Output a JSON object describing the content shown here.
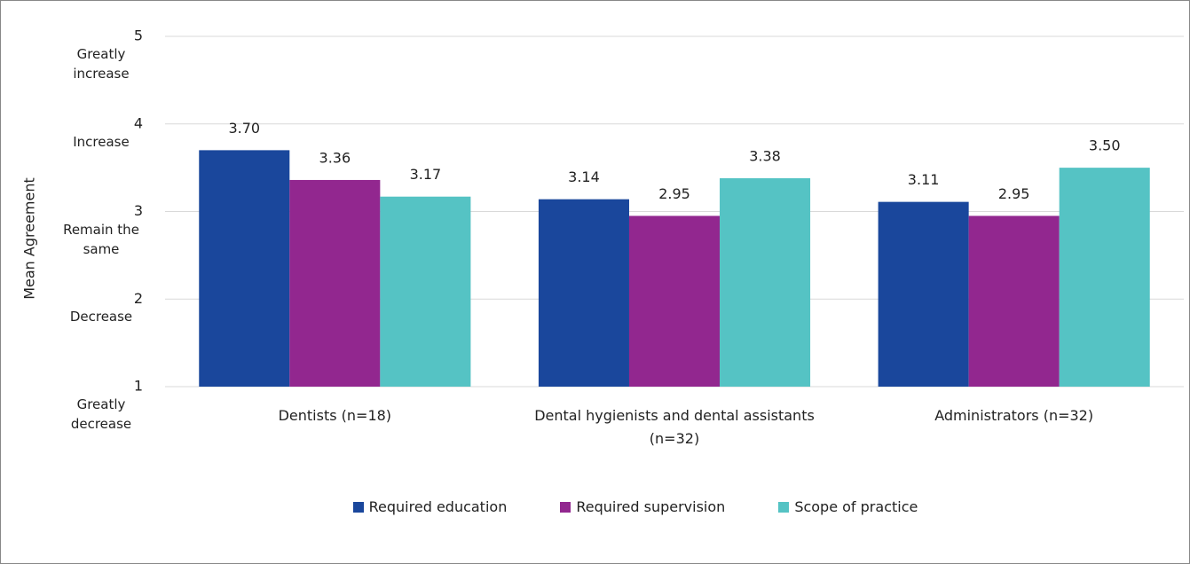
{
  "chart_data": {
    "type": "bar",
    "y_axis_label": "Mean Agreement",
    "categories": [
      "Dentists (n=18)",
      "Dental hygienists and dental assistants (n=32)",
      "Administrators (n=32)"
    ],
    "series": [
      {
        "name": "Required education",
        "color": "#1a479c",
        "values": [
          3.7,
          3.14,
          3.11
        ],
        "value_labels": [
          "3.70",
          "3.14",
          "3.11"
        ]
      },
      {
        "name": "Required supervision",
        "color": "#92278f",
        "values": [
          3.36,
          2.95,
          2.95
        ],
        "value_labels": [
          "3.36",
          "2.95",
          "2.95"
        ]
      },
      {
        "name": "Scope of practice",
        "color": "#55c3c4",
        "values": [
          3.17,
          3.38,
          3.5
        ],
        "value_labels": [
          "3.17",
          "3.38",
          "3.50"
        ]
      }
    ],
    "ylim": [
      1,
      5
    ],
    "yticks": [
      1,
      2,
      3,
      4,
      5
    ],
    "ytick_descriptions": [
      "Greatly decrease",
      "Decrease",
      "Remain the same",
      "Increase",
      "Greatly increase"
    ],
    "grid": true,
    "legend": "bottom"
  }
}
